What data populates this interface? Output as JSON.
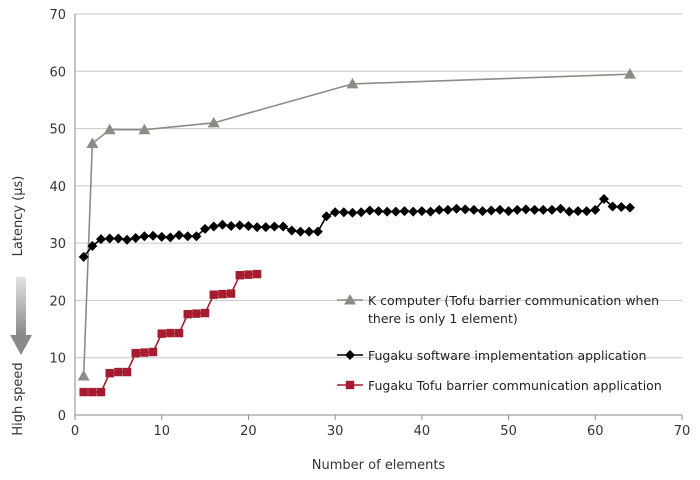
{
  "chart_data": {
    "type": "line",
    "xlabel": "Number of elements",
    "ylabel": "Latency (µs)",
    "ylabel_note": "High speed",
    "xlim": [
      0,
      70
    ],
    "ylim": [
      0,
      70
    ],
    "x_ticks": [
      0,
      10,
      20,
      30,
      40,
      50,
      60,
      70
    ],
    "y_ticks": [
      0,
      10,
      20,
      30,
      40,
      50,
      60,
      70
    ],
    "grid": "horizontal",
    "legend_position": "bottom-right",
    "series": [
      {
        "name_lines": [
          "K computer (Tofu barrier communication when",
          "there is only 1 element)"
        ],
        "color": "#8c8c84",
        "marker": "triangle",
        "x": [
          1,
          2,
          4,
          8,
          16,
          32,
          64
        ],
        "y": [
          6.8,
          47.4,
          49.8,
          49.8,
          51.0,
          57.8,
          59.5
        ]
      },
      {
        "name_lines": [
          "Fugaku software implementation application"
        ],
        "color": "#000000",
        "marker": "diamond",
        "x": [
          1,
          2,
          3,
          4,
          5,
          6,
          7,
          8,
          9,
          10,
          11,
          12,
          13,
          14,
          15,
          16,
          17,
          18,
          19,
          20,
          21,
          22,
          23,
          24,
          25,
          26,
          27,
          28,
          29,
          30,
          31,
          32,
          33,
          34,
          35,
          36,
          37,
          38,
          39,
          40,
          41,
          42,
          43,
          44,
          45,
          46,
          47,
          48,
          49,
          50,
          51,
          52,
          53,
          54,
          55,
          56,
          57,
          58,
          59,
          60,
          61,
          62,
          63,
          64
        ],
        "y": [
          27.6,
          29.5,
          30.7,
          30.8,
          30.8,
          30.6,
          30.9,
          31.2,
          31.3,
          31.1,
          31.0,
          31.4,
          31.2,
          31.2,
          32.5,
          32.9,
          33.2,
          33.0,
          33.1,
          33.0,
          32.8,
          32.8,
          32.9,
          32.9,
          32.2,
          32.0,
          32.0,
          32.0,
          34.7,
          35.4,
          35.4,
          35.3,
          35.4,
          35.7,
          35.6,
          35.5,
          35.5,
          35.6,
          35.5,
          35.6,
          35.5,
          35.8,
          35.8,
          36.0,
          35.9,
          35.8,
          35.6,
          35.7,
          35.8,
          35.6,
          35.8,
          35.9,
          35.8,
          35.8,
          35.8,
          36.0,
          35.5,
          35.6,
          35.6,
          35.8,
          37.7,
          36.4,
          36.3,
          36.2
        ]
      },
      {
        "name_lines": [
          "Fugaku Tofu barrier communication application"
        ],
        "color": "#a61c2e",
        "marker": "square",
        "x": [
          1,
          2,
          3,
          4,
          5,
          6,
          7,
          8,
          9,
          10,
          11,
          12,
          13,
          14,
          15,
          16,
          17,
          18,
          19,
          20,
          21
        ],
        "y": [
          4.0,
          4.0,
          4.0,
          7.3,
          7.5,
          7.5,
          10.8,
          10.9,
          11.0,
          14.2,
          14.3,
          14.3,
          17.6,
          17.7,
          17.8,
          21.0,
          21.1,
          21.2,
          24.4,
          24.5,
          24.6
        ]
      }
    ]
  }
}
